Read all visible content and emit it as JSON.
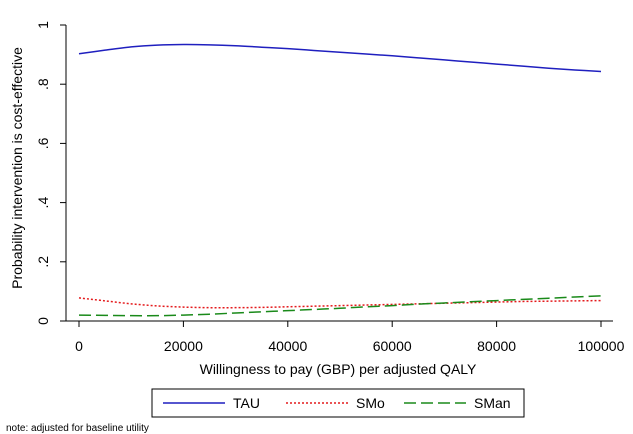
{
  "chart_data": {
    "type": "line",
    "xlabel": "Willingness to pay (GBP) per adjusted QALY",
    "ylabel": "Probability intervention is cost-effective",
    "xlim": [
      0,
      100000
    ],
    "ylim": [
      0,
      1
    ],
    "xticks": [
      0,
      20000,
      40000,
      60000,
      80000,
      100000
    ],
    "xtick_labels": [
      "0",
      "20000",
      "40000",
      "60000",
      "80000",
      "100000"
    ],
    "yticks": [
      0,
      0.2,
      0.4,
      0.6,
      0.8,
      1
    ],
    "ytick_labels": [
      "0",
      ".2",
      ".4",
      ".6",
      ".8",
      "1"
    ],
    "grid": false,
    "legend_position": "bottom",
    "x": [
      0,
      5000,
      10000,
      15000,
      20000,
      25000,
      30000,
      35000,
      40000,
      45000,
      50000,
      55000,
      60000,
      65000,
      70000,
      75000,
      80000,
      85000,
      90000,
      95000,
      100000
    ],
    "series": [
      {
        "name": "TAU",
        "color": "#1f1fbf",
        "dash": "solid",
        "values": [
          0.903,
          0.915,
          0.926,
          0.932,
          0.934,
          0.933,
          0.93,
          0.925,
          0.92,
          0.914,
          0.908,
          0.902,
          0.896,
          0.889,
          0.882,
          0.875,
          0.868,
          0.861,
          0.854,
          0.848,
          0.843
        ]
      },
      {
        "name": "SMo",
        "color": "#e41a1c",
        "dash": "dotted",
        "values": [
          0.078,
          0.068,
          0.058,
          0.051,
          0.047,
          0.045,
          0.045,
          0.046,
          0.048,
          0.05,
          0.052,
          0.054,
          0.056,
          0.058,
          0.06,
          0.062,
          0.064,
          0.066,
          0.067,
          0.068,
          0.069
        ]
      },
      {
        "name": "SMan",
        "color": "#1a8a1a",
        "dash": "dashed",
        "values": [
          0.02,
          0.019,
          0.018,
          0.018,
          0.02,
          0.023,
          0.027,
          0.031,
          0.035,
          0.039,
          0.043,
          0.048,
          0.052,
          0.057,
          0.061,
          0.065,
          0.069,
          0.073,
          0.077,
          0.081,
          0.085
        ]
      }
    ],
    "note": "note: adjusted for baseline utility"
  }
}
